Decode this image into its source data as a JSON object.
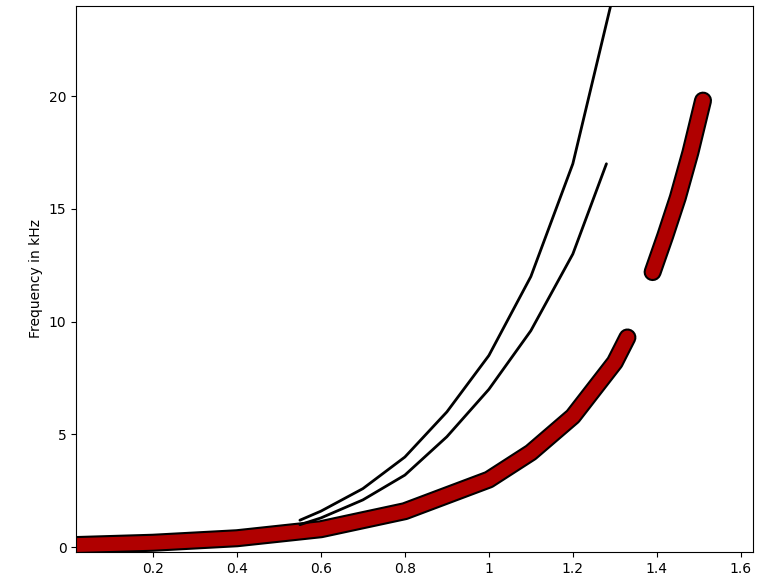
{
  "chart_data": {
    "type": "line",
    "y_label": "Frequency in kHz",
    "xlim": [
      0.017,
      1.63
    ],
    "ylim": [
      -0.2,
      24
    ],
    "xticks": [
      0.2,
      0.4,
      0.6,
      0.8,
      1,
      1.2,
      1.4,
      1.6
    ],
    "yticks": [
      0,
      5,
      10,
      15,
      20
    ],
    "grid": false,
    "series": [
      {
        "color": "#b00000",
        "line_style": "thick",
        "x": [
          0.02,
          0.2,
          0.4,
          0.6,
          0.8,
          1.0,
          1.1,
          1.2,
          1.3,
          1.33
        ],
        "values": [
          0.1,
          0.2,
          0.4,
          0.8,
          1.6,
          3.0,
          4.2,
          5.8,
          8.2,
          9.3
        ]
      },
      {
        "color": "#b00000",
        "line_style": "thick",
        "x": [
          1.39,
          1.42,
          1.45,
          1.48,
          1.51
        ],
        "values": [
          12.2,
          13.8,
          15.5,
          17.5,
          19.8
        ]
      },
      {
        "color": "#000000",
        "line_style": "thin",
        "x": [
          0.55,
          0.6,
          0.7,
          0.8,
          0.9,
          1.0,
          1.1,
          1.2,
          1.29
        ],
        "values": [
          1.2,
          1.6,
          2.6,
          4.0,
          6.0,
          8.5,
          12.0,
          17.0,
          24.0
        ]
      },
      {
        "color": "#000000",
        "line_style": "thin",
        "x": [
          0.55,
          0.6,
          0.7,
          0.8,
          0.9,
          1.0,
          1.1,
          1.2,
          1.28
        ],
        "values": [
          1.0,
          1.3,
          2.1,
          3.2,
          4.9,
          7.0,
          9.6,
          13.0,
          17.0
        ]
      }
    ]
  }
}
